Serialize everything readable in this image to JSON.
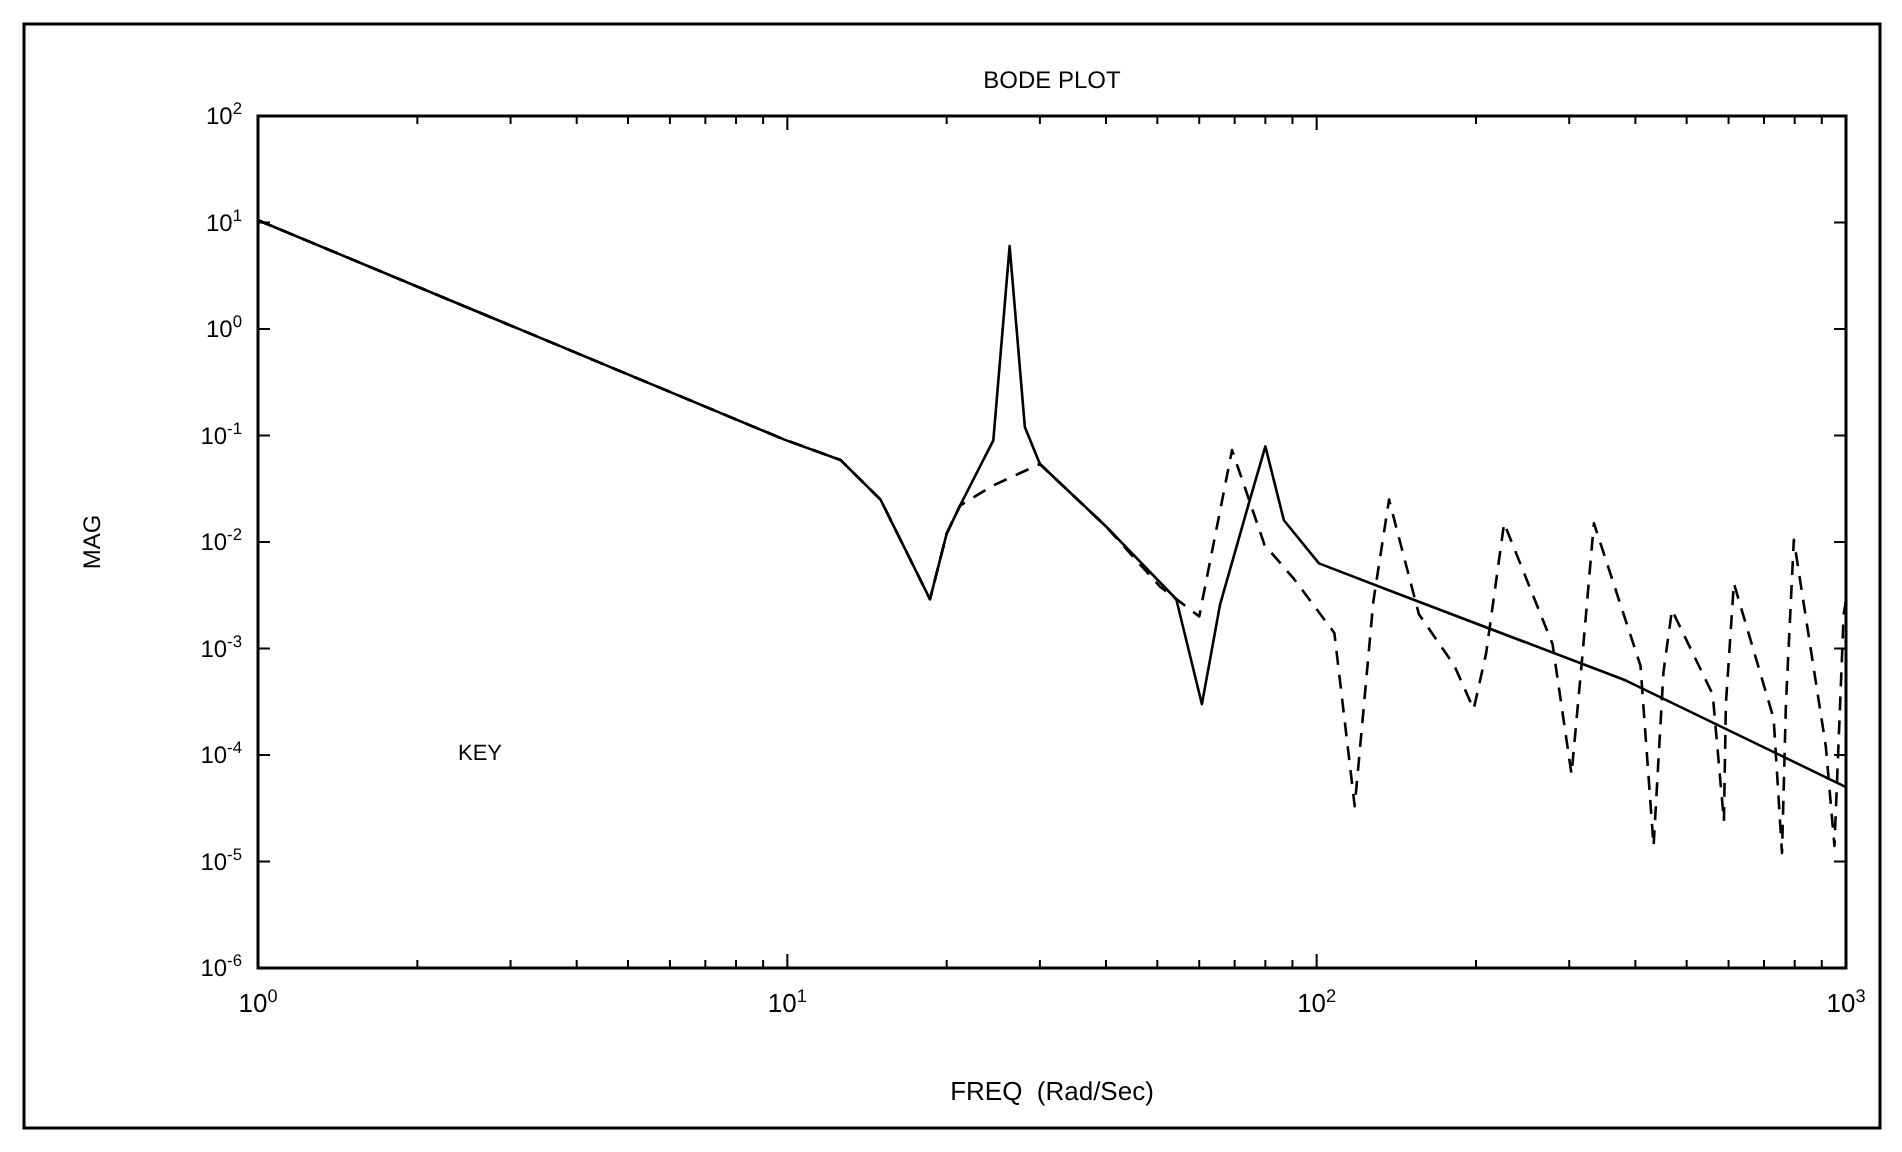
{
  "chart_data": {
    "type": "line",
    "title": "BODE PLOT",
    "xlabel": "FREQ  (Rad/Sec)",
    "ylabel": "MAG",
    "annotations": [
      "KEY"
    ],
    "log": "xy",
    "grid": false,
    "xlim": [
      1,
      1000
    ],
    "ylim": [
      1e-06,
      100
    ],
    "xticks": [
      {
        "value": 1,
        "label": "10$^{0}$"
      },
      {
        "value": 2,
        "label": null
      },
      {
        "value": 3,
        "label": null
      },
      {
        "value": 4,
        "label": null
      },
      {
        "value": 5,
        "label": null
      },
      {
        "value": 6,
        "label": null
      },
      {
        "value": 7,
        "label": null
      },
      {
        "value": 8,
        "label": null
      },
      {
        "value": 9,
        "label": null
      },
      {
        "value": 10,
        "label": "10$^{1}$"
      },
      {
        "value": 20,
        "label": null
      },
      {
        "value": 30,
        "label": null
      },
      {
        "value": 40,
        "label": null
      },
      {
        "value": 50,
        "label": null
      },
      {
        "value": 60,
        "label": null
      },
      {
        "value": 70,
        "label": null
      },
      {
        "value": 80,
        "label": null
      },
      {
        "value": 90,
        "label": null
      },
      {
        "value": 100,
        "label": "10$^{2}$"
      },
      {
        "value": 200,
        "label": null
      },
      {
        "value": 300,
        "label": null
      },
      {
        "value": 400,
        "label": null
      },
      {
        "value": 500,
        "label": null
      },
      {
        "value": 600,
        "label": null
      },
      {
        "value": 700,
        "label": null
      },
      {
        "value": 800,
        "label": null
      },
      {
        "value": 900,
        "label": null
      },
      {
        "value": 1000,
        "label": "10$^{3}$"
      }
    ],
    "yticks": [
      {
        "value": 1e-06,
        "label": "10$^{-6}$"
      },
      {
        "value": 1e-05,
        "label": "10$^{-5}$"
      },
      {
        "value": 0.0001,
        "label": "10$^{-4}$"
      },
      {
        "value": 0.001,
        "label": "10$^{-3}$"
      },
      {
        "value": 0.01,
        "label": "10$^{-2}$"
      },
      {
        "value": 0.1,
        "label": "10$^{-1}$"
      },
      {
        "value": 1,
        "label": "10$^{0}$"
      },
      {
        "value": 10,
        "label": "10$^{1}$"
      },
      {
        "value": 100,
        "label": "10$^{2}$"
      }
    ],
    "series": [
      {
        "color": "#000000",
        "line_style": "solid",
        "x": [
          1,
          9.9,
          12.6,
          15,
          18.6,
          20,
          21.2,
          24.5,
          26.3,
          28.1,
          30,
          40,
          54.3,
          60.7,
          65.7,
          74.8,
          80,
          86.7,
          101,
          144,
          384,
          1000
        ],
        "values": [
          10.5,
          0.091,
          0.059,
          0.025,
          0.0029,
          0.012,
          0.022,
          0.09,
          6,
          0.12,
          0.054,
          0.014,
          0.0029,
          0.0003,
          0.0026,
          0.025,
          0.079,
          0.016,
          0.0063,
          0.0032,
          0.0005,
          5e-05
        ]
      },
      {
        "color": "#000000",
        "line_style": "dashed",
        "x": [
          1,
          9.9,
          12.6,
          15,
          18.6,
          20,
          21.2,
          24.5,
          30,
          40,
          50.6,
          60,
          69.2,
          79.7,
          90.6,
          108,
          118,
          128,
          137,
          156,
          182,
          198,
          209,
          226,
          279,
          303,
          318,
          334,
          409,
          433,
          452,
          469,
          560,
          588,
          593,
          614,
          730,
          757,
          770,
          797,
          916,
          951,
          990,
          1000
        ],
        "values": [
          10.5,
          0.091,
          0.059,
          0.025,
          0.0029,
          0.012,
          0.022,
          0.034,
          0.054,
          0.014,
          0.0038,
          0.002,
          0.073,
          0.0094,
          0.0045,
          0.0014,
          3.3e-05,
          0.0028,
          0.025,
          0.0021,
          0.00069,
          0.00027,
          0.0009,
          0.015,
          0.0011,
          6.6e-05,
          0.0009,
          0.015,
          0.00069,
          1.4e-05,
          0.0006,
          0.0023,
          0.00037,
          2.4e-05,
          0.0003,
          0.0041,
          0.00022,
          1.2e-05,
          0.0003,
          0.0105,
          0.00012,
          1.4e-05,
          0.0021,
          0.0028
        ]
      }
    ]
  }
}
